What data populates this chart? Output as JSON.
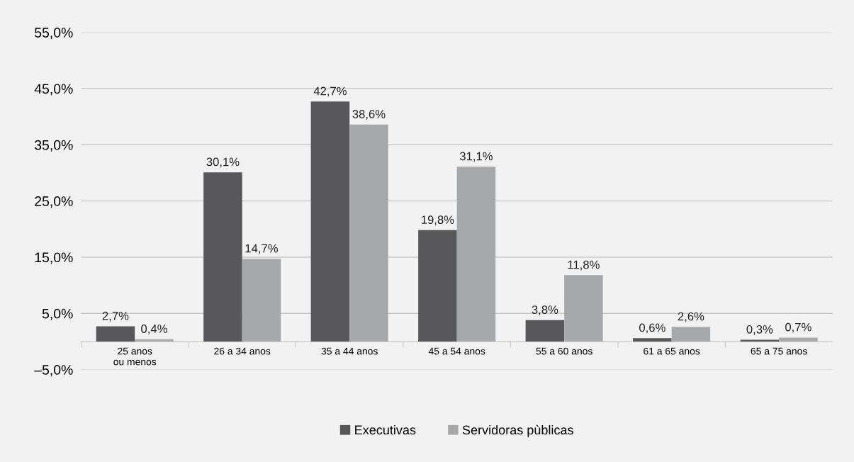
{
  "chart_data": {
    "type": "bar",
    "categories": [
      "25 anos\nou menos",
      "26 a 34 anos",
      "35 a 44 anos",
      "45 a 54 anos",
      "55 a 60 anos",
      "61 a 65 anos",
      "65 a 75 anos"
    ],
    "series": [
      {
        "name": "Executivas",
        "color": "#58585a",
        "values": [
          2.7,
          30.1,
          42.7,
          19.8,
          3.8,
          0.6,
          0.3
        ],
        "value_labels": [
          "2,7%",
          "30,1%",
          "42,7%",
          "19,8%",
          "3,8%",
          "0,6%",
          "0,3%"
        ]
      },
      {
        "name": "Servidoras pùblicas",
        "color": "#a7a8aa",
        "values": [
          0.4,
          14.7,
          38.6,
          31.1,
          11.8,
          2.6,
          0.7
        ],
        "value_labels": [
          "0,4%",
          "14,7%",
          "38,6%",
          "31,1%",
          "11,8%",
          "2,6%",
          "0,7%"
        ]
      }
    ],
    "ylim": [
      -5,
      55
    ],
    "yticks": [
      {
        "value": -5,
        "label": "–5,0%"
      },
      {
        "value": 5,
        "label": "5,0%"
      },
      {
        "value": 15,
        "label": "15,0%"
      },
      {
        "value": 25,
        "label": "25,0%"
      },
      {
        "value": 35,
        "label": "35,0%"
      },
      {
        "value": 45,
        "label": "45,0%"
      },
      {
        "value": 55,
        "label": "55,0%"
      }
    ],
    "grid": "y",
    "legend": "bottom"
  }
}
